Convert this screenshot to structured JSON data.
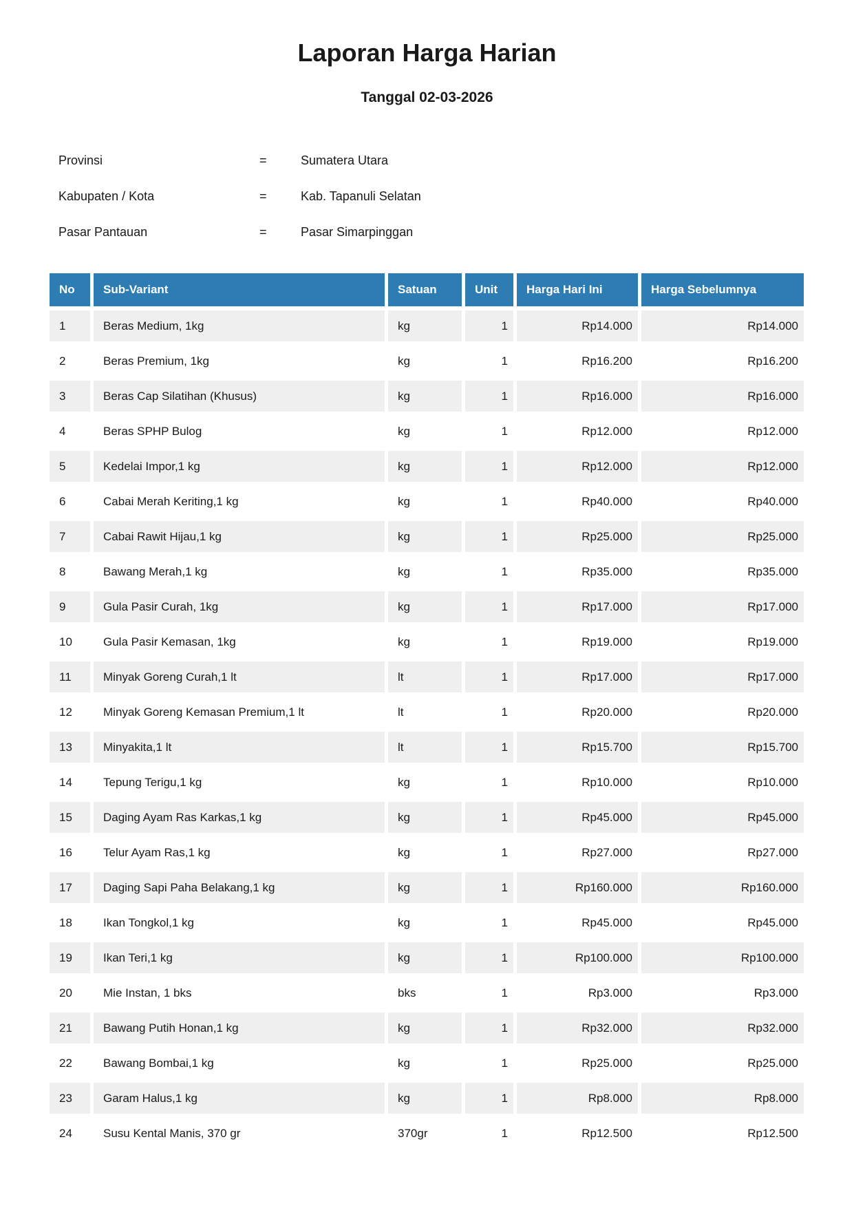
{
  "report": {
    "title": "Laporan Harga Harian",
    "date_line": "Tanggal 02-03-2026",
    "info": [
      {
        "label": "Provinsi",
        "separator": "=",
        "value": "Sumatera Utara"
      },
      {
        "label": "Kabupaten / Kota",
        "separator": "=",
        "value": "Kab. Tapanuli Selatan"
      },
      {
        "label": "Pasar Pantauan",
        "separator": "=",
        "value": "Pasar Simarpinggan"
      }
    ]
  },
  "table": {
    "columns": [
      "No",
      "Sub-Variant",
      "Satuan",
      "Unit",
      "Harga Hari Ini",
      "Harga Sebelumnya"
    ],
    "rows": [
      [
        "1",
        "Beras Medium, 1kg",
        "kg",
        "1",
        "Rp14.000",
        "Rp14.000"
      ],
      [
        "2",
        "Beras Premium, 1kg",
        "kg",
        "1",
        "Rp16.200",
        "Rp16.200"
      ],
      [
        "3",
        "Beras Cap Silatihan (Khusus)",
        "kg",
        "1",
        "Rp16.000",
        "Rp16.000"
      ],
      [
        "4",
        "Beras SPHP Bulog",
        "kg",
        "1",
        "Rp12.000",
        "Rp12.000"
      ],
      [
        "5",
        "Kedelai Impor,1 kg",
        "kg",
        "1",
        "Rp12.000",
        "Rp12.000"
      ],
      [
        "6",
        "Cabai Merah Keriting,1 kg",
        "kg",
        "1",
        "Rp40.000",
        "Rp40.000"
      ],
      [
        "7",
        "Cabai Rawit Hijau,1 kg",
        "kg",
        "1",
        "Rp25.000",
        "Rp25.000"
      ],
      [
        "8",
        "Bawang Merah,1 kg",
        "kg",
        "1",
        "Rp35.000",
        "Rp35.000"
      ],
      [
        "9",
        "Gula Pasir Curah, 1kg",
        "kg",
        "1",
        "Rp17.000",
        "Rp17.000"
      ],
      [
        "10",
        "Gula Pasir Kemasan, 1kg",
        "kg",
        "1",
        "Rp19.000",
        "Rp19.000"
      ],
      [
        "11",
        "Minyak Goreng Curah,1 lt",
        "lt",
        "1",
        "Rp17.000",
        "Rp17.000"
      ],
      [
        "12",
        "Minyak Goreng Kemasan Premium,1 lt",
        "lt",
        "1",
        "Rp20.000",
        "Rp20.000"
      ],
      [
        "13",
        "Minyakita,1 lt",
        "lt",
        "1",
        "Rp15.700",
        "Rp15.700"
      ],
      [
        "14",
        "Tepung Terigu,1 kg",
        "kg",
        "1",
        "Rp10.000",
        "Rp10.000"
      ],
      [
        "15",
        "Daging Ayam Ras Karkas,1 kg",
        "kg",
        "1",
        "Rp45.000",
        "Rp45.000"
      ],
      [
        "16",
        "Telur Ayam Ras,1 kg",
        "kg",
        "1",
        "Rp27.000",
        "Rp27.000"
      ],
      [
        "17",
        "Daging Sapi Paha Belakang,1 kg",
        "kg",
        "1",
        "Rp160.000",
        "Rp160.000"
      ],
      [
        "18",
        "Ikan Tongkol,1 kg",
        "kg",
        "1",
        "Rp45.000",
        "Rp45.000"
      ],
      [
        "19",
        "Ikan Teri,1 kg",
        "kg",
        "1",
        "Rp100.000",
        "Rp100.000"
      ],
      [
        "20",
        "Mie Instan, 1 bks",
        "bks",
        "1",
        "Rp3.000",
        "Rp3.000"
      ],
      [
        "21",
        "Bawang Putih Honan,1 kg",
        "kg",
        "1",
        "Rp32.000",
        "Rp32.000"
      ],
      [
        "22",
        "Bawang Bombai,1 kg",
        "kg",
        "1",
        "Rp25.000",
        "Rp25.000"
      ],
      [
        "23",
        "Garam Halus,1 kg",
        "kg",
        "1",
        "Rp8.000",
        "Rp8.000"
      ],
      [
        "24",
        "Susu Kental Manis, 370 gr",
        "370gr",
        "1",
        "Rp12.500",
        "Rp12.500"
      ]
    ]
  },
  "colors": {
    "header_bg": "#2d7db4",
    "header_text": "#ffffff",
    "row_alt_bg": "#efefef",
    "body_text": "#1a1a1a"
  }
}
